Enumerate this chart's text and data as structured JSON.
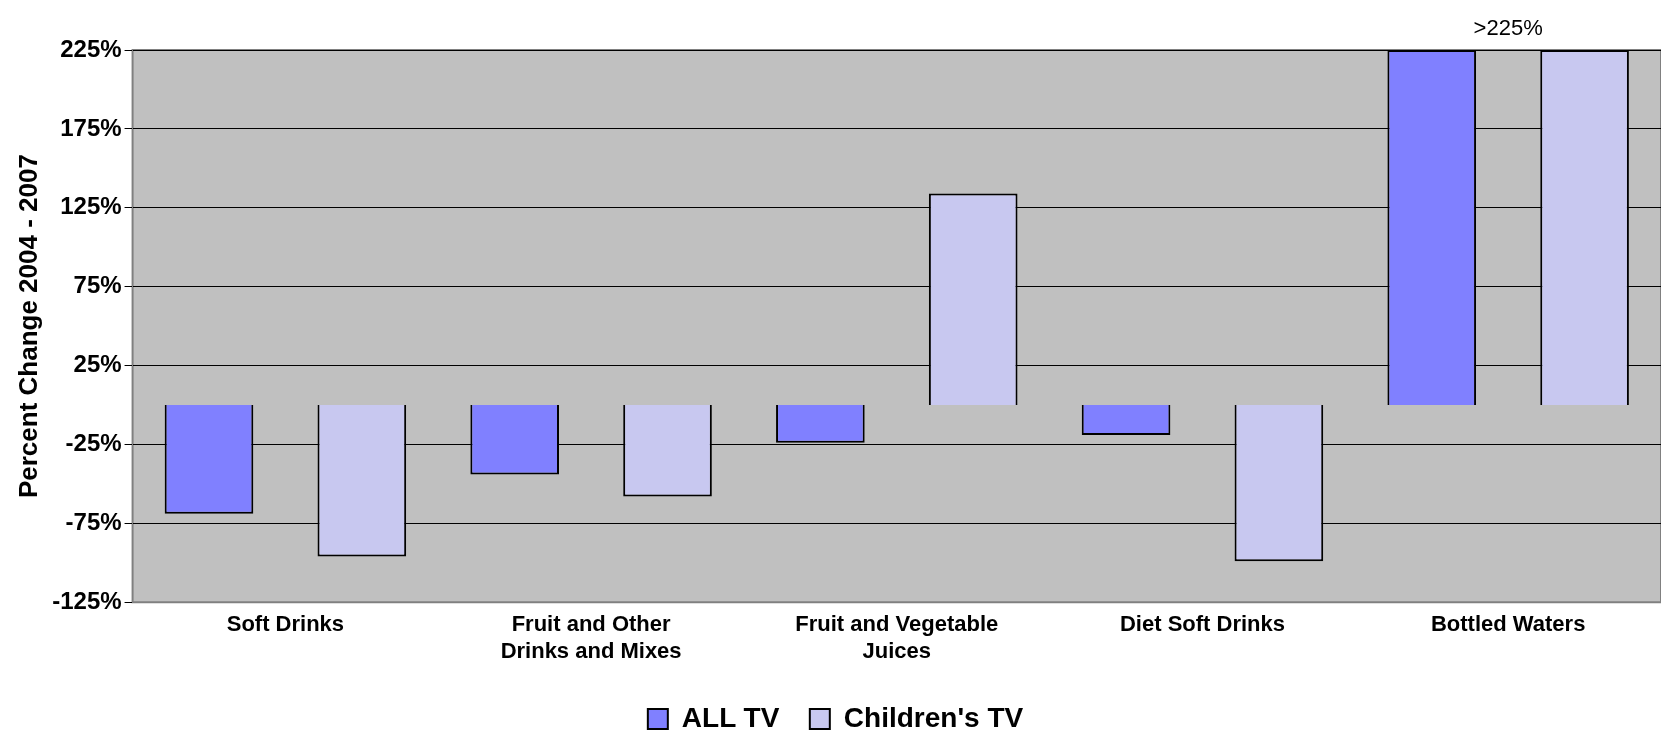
{
  "chart_data": {
    "type": "bar",
    "ylabel": "Percent Change 2004 - 2007",
    "categories": [
      "Soft Drinks",
      "Fruit and Other Drinks and Mixes",
      "Fruit and Vegetable Juices",
      "Diet Soft Drinks",
      "Bottled Waters"
    ],
    "series": [
      {
        "name": "ALL TV",
        "color": "#8080ff",
        "values": [
          -69,
          -44,
          -24,
          -19,
          225
        ]
      },
      {
        "name": "Children's TV",
        "color": "#c8c8f0",
        "values": [
          -96,
          -58,
          134,
          -99,
          225
        ]
      }
    ],
    "ylim": [
      -125,
      225
    ],
    "yticks": [
      {
        "value": -125,
        "label": "-125%"
      },
      {
        "value": -75,
        "label": "-75%"
      },
      {
        "value": -25,
        "label": "-25%"
      },
      {
        "value": 25,
        "label": "25%"
      },
      {
        "value": 75,
        "label": "75%"
      },
      {
        "value": 125,
        "label": "125%"
      },
      {
        "value": 175,
        "label": "175%"
      },
      {
        "value": 225,
        "label": "225%"
      }
    ],
    "grid": "y",
    "legend": "bottom",
    "annotations": [
      ">225%"
    ]
  }
}
